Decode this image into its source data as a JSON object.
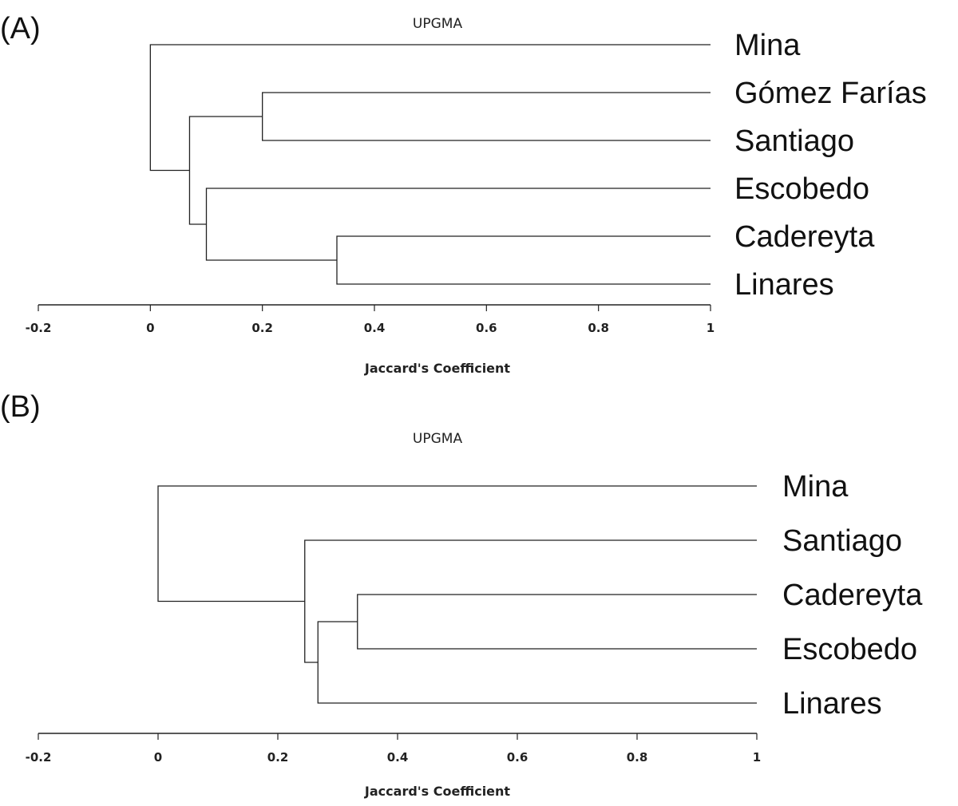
{
  "chart_data": [
    {
      "type": "dendrogram",
      "panel_label": "(A)",
      "title": "UPGMA",
      "xlabel": "Jaccard's Coefficient",
      "xlim": [
        -0.2,
        1
      ],
      "ticks": [
        -0.2,
        0,
        0.2,
        0.4,
        0.6,
        0.8,
        1
      ],
      "tick_labels": [
        "-0.2",
        "0",
        "0.2",
        "0.4",
        "0.6",
        "0.8",
        "1"
      ],
      "leaves": [
        "Mina",
        "Gómez Farías",
        "Santiago",
        "Escobedo",
        "Cadereyta",
        "Linares"
      ],
      "merges": [
        {
          "left": "Gómez Farías",
          "right": "Santiago",
          "height": 0.2
        },
        {
          "left": "Cadereyta",
          "right": "Linares",
          "height": 0.333
        },
        {
          "left": "Escobedo",
          "right": "Cadereyta+Linares",
          "height": 0.1
        },
        {
          "left": "Gómez Farías+Santiago",
          "right": "Escobedo+Cadereyta+Linares",
          "height": 0.07
        },
        {
          "left": "Mina",
          "right": "rest",
          "height": 0.0
        }
      ]
    },
    {
      "type": "dendrogram",
      "panel_label": "(B)",
      "title": "UPGMA",
      "xlabel": "Jaccard's Coefficient",
      "xlim": [
        -0.2,
        1
      ],
      "ticks": [
        -0.2,
        0,
        0.2,
        0.4,
        0.6,
        0.8,
        1
      ],
      "tick_labels": [
        "-0.2",
        "0",
        "0.2",
        "0.4",
        "0.6",
        "0.8",
        "1"
      ],
      "leaves": [
        "Mina",
        "Santiago",
        "Cadereyta",
        "Escobedo",
        "Linares"
      ],
      "merges": [
        {
          "left": "Cadereyta",
          "right": "Escobedo",
          "height": 0.333
        },
        {
          "left": "Cadereyta+Escobedo",
          "right": "Linares",
          "height": 0.267
        },
        {
          "left": "Santiago",
          "right": "Cadereyta+Escobedo+Linares",
          "height": 0.245
        },
        {
          "left": "Mina",
          "right": "rest",
          "height": 0.0
        }
      ]
    }
  ]
}
